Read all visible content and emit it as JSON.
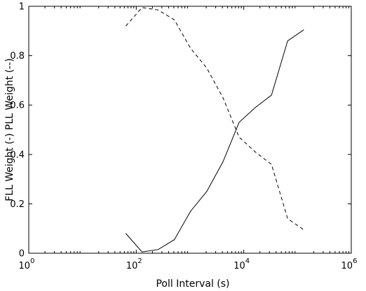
{
  "chart_data": {
    "type": "line",
    "title": "",
    "xlabel": "Poll Interval (s)",
    "ylabel": "FLL Weight (-) PLL Weight (--)",
    "xscale": "log",
    "xlim": [
      1,
      1000000
    ],
    "ylim": [
      0,
      1
    ],
    "grid": false,
    "x_ticks": [
      {
        "base": "10",
        "exp": "0",
        "value": 1
      },
      {
        "base": "10",
        "exp": "2",
        "value": 100
      },
      {
        "base": "10",
        "exp": "4",
        "value": 10000
      },
      {
        "base": "10",
        "exp": "6",
        "value": 1000000
      }
    ],
    "y_ticks": [
      {
        "label": "0",
        "value": 0
      },
      {
        "label": "0.2",
        "value": 0.2
      },
      {
        "label": "0.4",
        "value": 0.4
      },
      {
        "label": "0.6",
        "value": 0.6
      },
      {
        "label": "0.8",
        "value": 0.8
      },
      {
        "label": "1",
        "value": 1
      }
    ],
    "series": [
      {
        "style": "solid",
        "color": "#000000",
        "points": [
          [
            64,
            0.08
          ],
          [
            128,
            0.005
          ],
          [
            256,
            0.015
          ],
          [
            512,
            0.055
          ],
          [
            1024,
            0.17
          ],
          [
            2048,
            0.25
          ],
          [
            4096,
            0.37
          ],
          [
            8192,
            0.53
          ],
          [
            16384,
            0.59
          ],
          [
            32768,
            0.64
          ],
          [
            65536,
            0.86
          ],
          [
            131072,
            0.905
          ]
        ]
      },
      {
        "style": "dashed",
        "color": "#000000",
        "points": [
          [
            64,
            0.92
          ],
          [
            128,
            0.995
          ],
          [
            256,
            0.985
          ],
          [
            512,
            0.945
          ],
          [
            1024,
            0.83
          ],
          [
            2048,
            0.75
          ],
          [
            4096,
            0.63
          ],
          [
            8192,
            0.47
          ],
          [
            16384,
            0.41
          ],
          [
            32768,
            0.36
          ],
          [
            65536,
            0.14
          ],
          [
            131072,
            0.095
          ]
        ]
      }
    ]
  }
}
